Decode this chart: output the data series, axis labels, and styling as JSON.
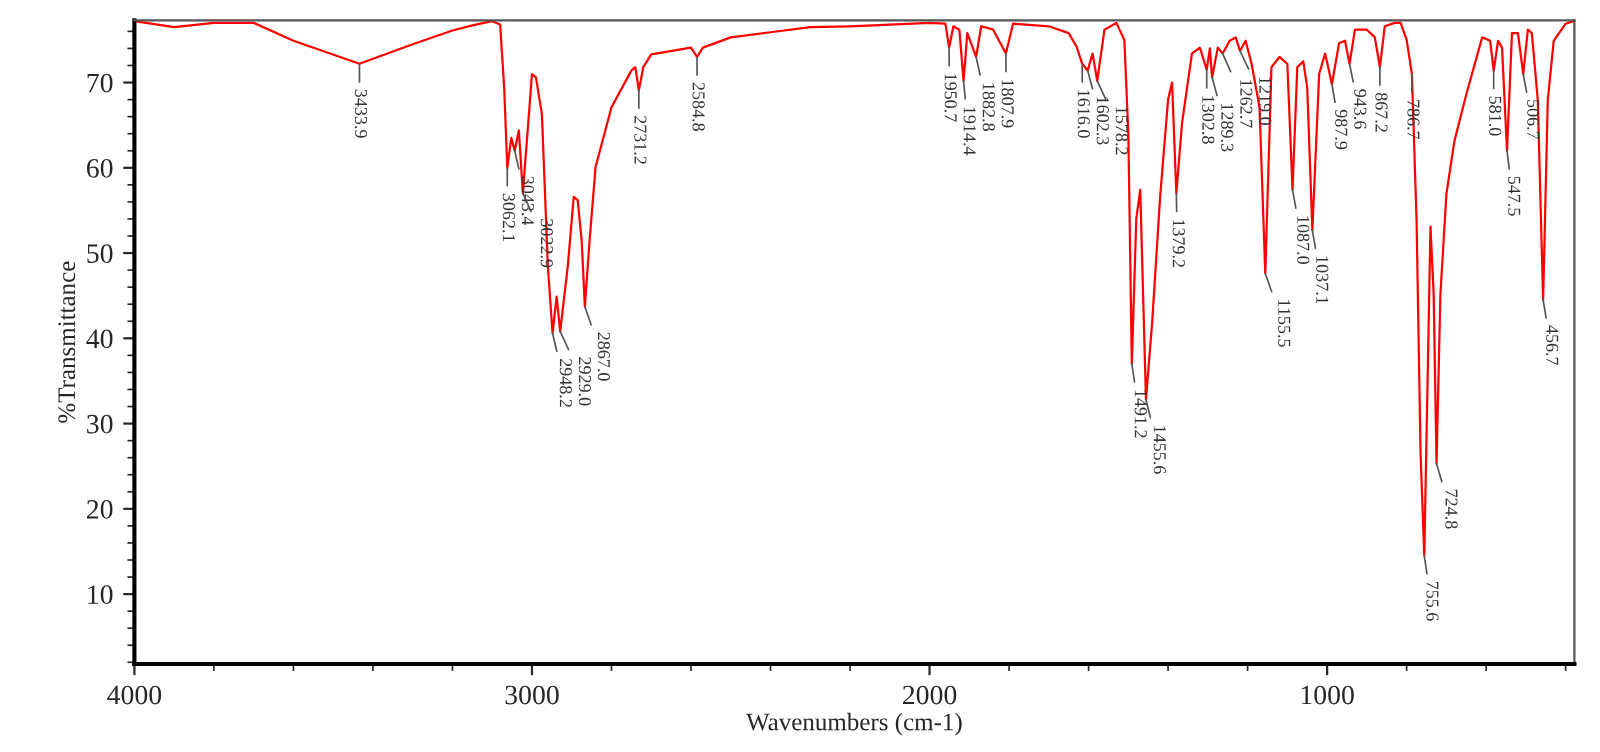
{
  "chart_data": {
    "type": "line",
    "xlabel": "Wavenumbers (cm-1)",
    "ylabel": "%Transmittance",
    "xlim": [
      4000,
      378
    ],
    "ylim": [
      1.8,
      77.3
    ],
    "xticks": [
      4000,
      {
        "value": 3800,
        "label": null
      },
      {
        "value": 3600,
        "label": null
      },
      {
        "value": 3400,
        "label": null
      },
      {
        "value": 3200,
        "label": null
      },
      3000,
      {
        "value": 2800,
        "label": null
      },
      {
        "value": 2600,
        "label": null
      },
      {
        "value": 2400,
        "label": null
      },
      {
        "value": 2200,
        "label": null
      },
      2000,
      {
        "value": 1800,
        "label": null
      },
      {
        "value": 1600,
        "label": null
      },
      {
        "value": 1400,
        "label": null
      },
      {
        "value": 1200,
        "label": null
      },
      1000,
      {
        "value": 800,
        "label": null
      },
      {
        "value": 600,
        "label": null
      },
      {
        "value": 400,
        "label": null
      }
    ],
    "yticks": [
      {
        "value": 2,
        "label": null
      },
      {
        "value": 4,
        "label": null
      },
      {
        "value": 6,
        "label": null
      },
      {
        "value": 8,
        "label": null
      },
      10,
      {
        "value": 12,
        "label": null
      },
      {
        "value": 14,
        "label": null
      },
      {
        "value": 16,
        "label": null
      },
      {
        "value": 18,
        "label": null
      },
      20,
      {
        "value": 22,
        "label": null
      },
      {
        "value": 24,
        "label": null
      },
      {
        "value": 26,
        "label": null
      },
      {
        "value": 28,
        "label": null
      },
      30,
      {
        "value": 32,
        "label": null
      },
      {
        "value": 34,
        "label": null
      },
      {
        "value": 36,
        "label": null
      },
      {
        "value": 38,
        "label": null
      },
      40,
      {
        "value": 42,
        "label": null
      },
      {
        "value": 44,
        "label": null
      },
      {
        "value": 46,
        "label": null
      },
      {
        "value": 48,
        "label": null
      },
      50,
      {
        "value": 52,
        "label": null
      },
      {
        "value": 54,
        "label": null
      },
      {
        "value": 56,
        "label": null
      },
      {
        "value": 58,
        "label": null
      },
      60,
      {
        "value": 62,
        "label": null
      },
      {
        "value": 64,
        "label": null
      },
      {
        "value": 66,
        "label": null
      },
      {
        "value": 68,
        "label": null
      },
      70,
      {
        "value": 72,
        "label": null
      },
      {
        "value": 74,
        "label": null
      },
      {
        "value": 76,
        "label": null
      }
    ],
    "grid": false,
    "legend": false,
    "marker": "none",
    "line_style": "solid",
    "series": [
      {
        "color": "#ff0000",
        "x": [
          4000,
          3900,
          3800,
          3700,
          3600,
          3433.9,
          3300,
          3200,
          3150,
          3100,
          3080,
          3070,
          3062.1,
          3052,
          3043.4,
          3033,
          3022.9,
          3000,
          2990,
          2975,
          2960,
          2948.2,
          2938,
          2929.0,
          2910,
          2895,
          2885,
          2875,
          2867.0,
          2855,
          2840,
          2800,
          2750,
          2740,
          2731.2,
          2720,
          2700,
          2600,
          2584.8,
          2570,
          2500,
          2400,
          2300,
          2200,
          2100,
          2000,
          1960,
          1950.7,
          1940,
          1925,
          1914.4,
          1905,
          1882.8,
          1870,
          1840,
          1807.9,
          1790,
          1700,
          1650,
          1630,
          1616.0,
          1602.3,
          1590,
          1578.2,
          1560,
          1530,
          1510,
          1500,
          1491.2,
          1480,
          1470,
          1455.6,
          1440,
          1420,
          1400,
          1390,
          1379.2,
          1365,
          1340,
          1320,
          1302.8,
          1295,
          1289.3,
          1275,
          1262.7,
          1245,
          1230,
          1219.0,
          1205,
          1190,
          1170,
          1155.5,
          1140,
          1120,
          1100,
          1087.0,
          1075,
          1060,
          1050,
          1037.1,
          1020,
          1005,
          987.9,
          970,
          955,
          943.6,
          930,
          900,
          880,
          867.2,
          855,
          830,
          815,
          800,
          786.7,
          775,
          765,
          755.6,
          740,
          732,
          724.8,
          715,
          700,
          680,
          650,
          610,
          590,
          581.0,
          570,
          560,
          547.5,
          535,
          520,
          506.7,
          495,
          485,
          470,
          456.7,
          445,
          430,
          400,
          380
        ],
        "values": [
          77.2,
          76.5,
          77.0,
          77.0,
          74.9,
          72.2,
          74.5,
          76.1,
          76.7,
          77.2,
          76.8,
          69.5,
          60.0,
          63.5,
          62.0,
          64.4,
          57.0,
          71.0,
          70.6,
          66.3,
          48.4,
          40.6,
          44.9,
          40.8,
          48.4,
          56.6,
          56.2,
          51.5,
          43.7,
          51.5,
          60.1,
          67.1,
          71.4,
          71.8,
          69.1,
          71.8,
          73.3,
          74.1,
          73.0,
          74.1,
          75.3,
          75.9,
          76.5,
          76.6,
          76.8,
          77.0,
          76.9,
          74.1,
          76.6,
          76.2,
          70.2,
          75.8,
          73.0,
          76.6,
          76.2,
          73.4,
          76.9,
          76.6,
          75.8,
          74.2,
          72.2,
          71.4,
          73.4,
          70.2,
          76.2,
          77.0,
          75.0,
          64.1,
          37.0,
          54.0,
          57.4,
          32.8,
          41.9,
          56.6,
          68.0,
          70.0,
          57.0,
          65.2,
          73.4,
          74.1,
          71.5,
          74.0,
          70.6,
          74.1,
          73.4,
          74.9,
          75.3,
          73.7,
          74.9,
          72.2,
          67.1,
          47.6,
          71.8,
          73.0,
          72.2,
          57.4,
          71.8,
          72.5,
          69.4,
          52.7,
          71.0,
          73.4,
          69.8,
          74.6,
          74.9,
          72.2,
          76.2,
          76.2,
          75.3,
          71.8,
          76.6,
          77.0,
          77.0,
          75.0,
          71.0,
          53.9,
          26.6,
          14.5,
          53.1,
          45.2,
          25.3,
          45.2,
          56.9,
          63.1,
          68.6,
          75.3,
          74.9,
          71.4,
          74.9,
          74.1,
          62.0,
          75.8,
          75.8,
          71.0,
          76.2,
          75.8,
          67.9,
          44.5,
          67.9,
          74.9,
          76.9,
          77.2
        ]
      }
    ],
    "annotations": [
      {
        "text": "3433.9",
        "x": 3433.9,
        "y": 72.2
      },
      {
        "text": "3062.1",
        "x": 3062.1,
        "y": 60.0
      },
      {
        "text": "3043.4",
        "x": 3043.4,
        "y": 62.0
      },
      {
        "text": "3022.9",
        "x": 3022.9,
        "y": 57.0
      },
      {
        "text": "2948.2",
        "x": 2948.2,
        "y": 40.6
      },
      {
        "text": "2929.0",
        "x": 2929.0,
        "y": 40.8
      },
      {
        "text": "2867.0",
        "x": 2867.0,
        "y": 43.7
      },
      {
        "text": "2731.2",
        "x": 2731.2,
        "y": 69.1
      },
      {
        "text": "2584.8",
        "x": 2584.8,
        "y": 73.0
      },
      {
        "text": "1950.7",
        "x": 1950.7,
        "y": 74.1
      },
      {
        "text": "1914.4",
        "x": 1914.4,
        "y": 70.2
      },
      {
        "text": "1882.8",
        "x": 1882.8,
        "y": 73.0
      },
      {
        "text": "1807.9",
        "x": 1807.9,
        "y": 73.4
      },
      {
        "text": "1616.0",
        "x": 1616.0,
        "y": 72.2
      },
      {
        "text": "1602.3",
        "x": 1602.3,
        "y": 71.4
      },
      {
        "text": "1578.2",
        "x": 1578.2,
        "y": 70.2
      },
      {
        "text": "1491.2",
        "x": 1491.2,
        "y": 37.0
      },
      {
        "text": "1455.6",
        "x": 1455.6,
        "y": 32.8
      },
      {
        "text": "1379.2",
        "x": 1379.2,
        "y": 57.0
      },
      {
        "text": "1302.8",
        "x": 1302.8,
        "y": 71.5
      },
      {
        "text": "1289.3",
        "x": 1289.3,
        "y": 70.6
      },
      {
        "text": "1262.7",
        "x": 1262.7,
        "y": 73.4
      },
      {
        "text": "1219.0",
        "x": 1219.0,
        "y": 73.7
      },
      {
        "text": "1155.5",
        "x": 1155.5,
        "y": 47.6
      },
      {
        "text": "1087.0",
        "x": 1087.0,
        "y": 57.4
      },
      {
        "text": "1037.1",
        "x": 1037.1,
        "y": 52.7
      },
      {
        "text": "987.9",
        "x": 987.9,
        "y": 69.8
      },
      {
        "text": "943.6",
        "x": 943.6,
        "y": 72.2
      },
      {
        "text": "867.2",
        "x": 867.2,
        "y": 71.8
      },
      {
        "text": "786.7",
        "x": 786.7,
        "y": 71.0
      },
      {
        "text": "755.6",
        "x": 755.6,
        "y": 14.5
      },
      {
        "text": "724.8",
        "x": 724.8,
        "y": 25.3
      },
      {
        "text": "581.0",
        "x": 581.0,
        "y": 71.4
      },
      {
        "text": "547.5",
        "x": 547.5,
        "y": 62.0
      },
      {
        "text": "506.7",
        "x": 506.7,
        "y": 71.0
      },
      {
        "text": "456.7",
        "x": 456.7,
        "y": 44.5
      }
    ]
  }
}
